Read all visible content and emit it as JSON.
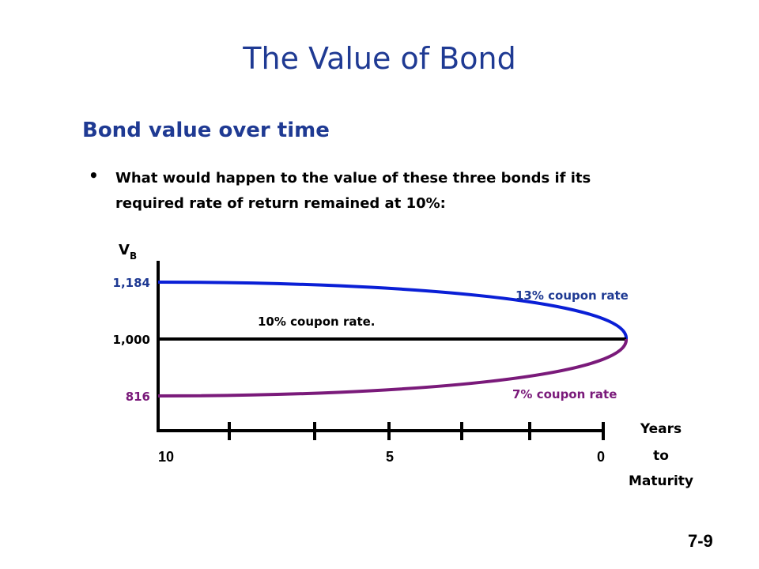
{
  "slide": {
    "title": "The Value of Bond",
    "subtitle": "Bond value over time",
    "bullet_line1": "What would happen to the value of these three bonds if its",
    "bullet_line2": "required rate of return remained at 10%:",
    "page_number": "7-9"
  },
  "chart_data": {
    "type": "line",
    "ylabel_main": "V",
    "ylabel_sub": "B",
    "xlabel_lines": [
      "Years",
      "to",
      "Maturity"
    ],
    "x_tick_labels": [
      "10",
      "5",
      "0"
    ],
    "x_tick_values": [
      10,
      5,
      0
    ],
    "minor_tick_values": [
      10,
      8,
      6,
      4,
      2,
      1,
      0
    ],
    "xlim": [
      10,
      0
    ],
    "ylim": [
      750,
      1250
    ],
    "y_labels": [
      {
        "text": "1,184",
        "value": 1184,
        "color": "#1f3a93"
      },
      {
        "text": "1,000",
        "value": 1000,
        "color": "#000000"
      },
      {
        "text": "816",
        "value": 816,
        "color": "#7a1a7a"
      }
    ],
    "series": [
      {
        "name": "13% coupon rate",
        "color": "#0a1fd6",
        "start": 1184,
        "end": 1000
      },
      {
        "name": "10% coupon rate.",
        "color": "#000000",
        "start": 1000,
        "end": 1000
      },
      {
        "name": "7% coupon rate",
        "color": "#7a1a7a",
        "start": 816,
        "end": 1000
      }
    ],
    "grid": false
  }
}
